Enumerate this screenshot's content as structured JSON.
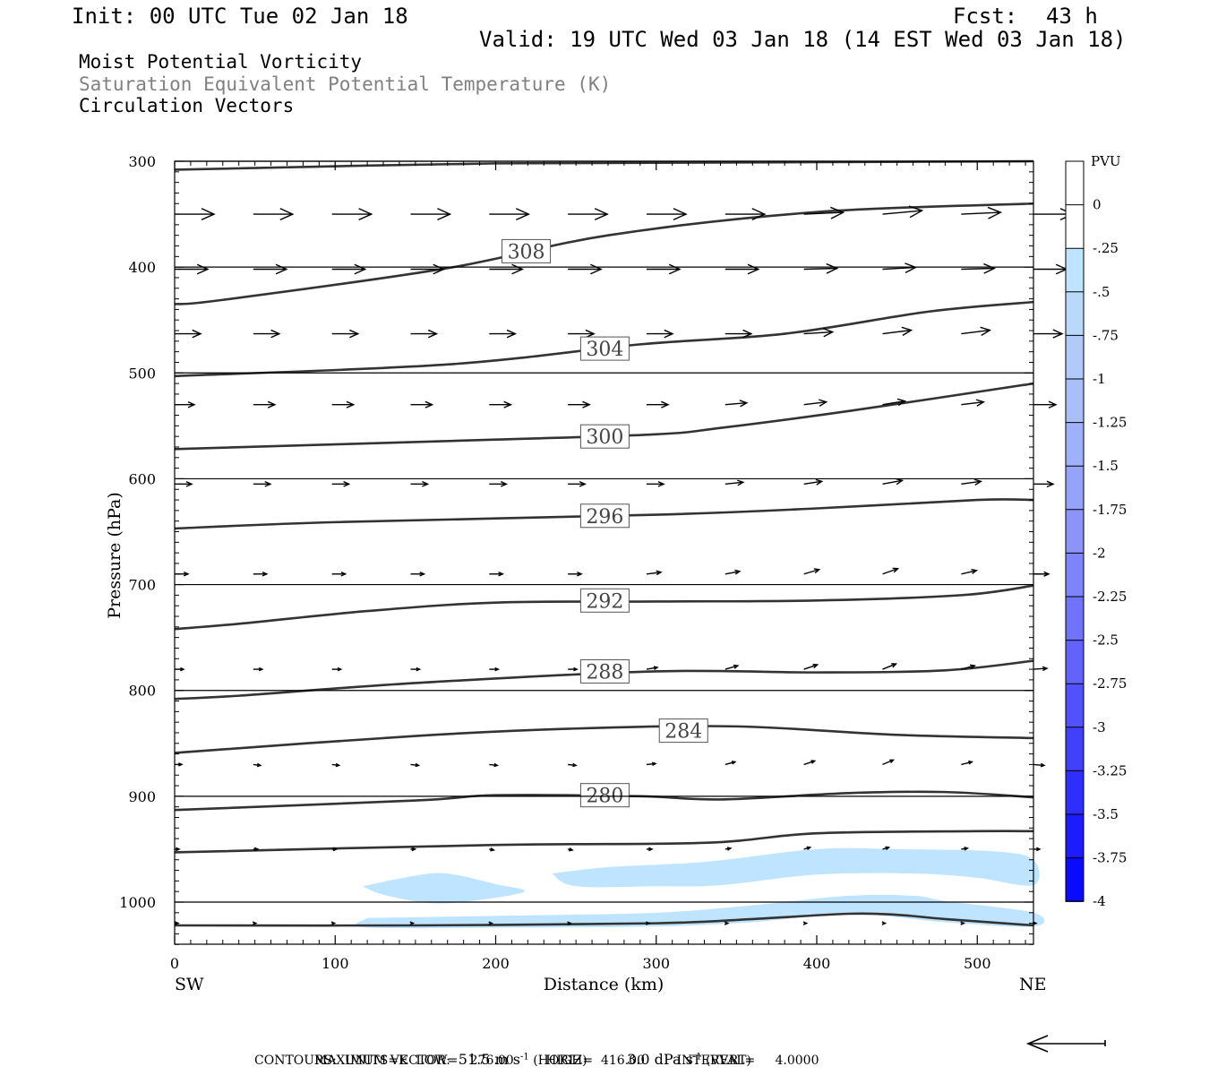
{
  "header": {
    "init": "Init: 00 UTC Tue 02 Jan 18",
    "fcst_label": "Fcst:",
    "fcst_value": "43 h",
    "valid": "Valid: 19 UTC Wed 03 Jan 18 (14 EST Wed 03 Jan 18)",
    "fields": [
      "Moist Potential Vorticity",
      "Saturation Equivalent Potential Temperature (K)",
      "Circulation Vectors"
    ],
    "field_colors": [
      "#000000",
      "#808080",
      "#000000"
    ]
  },
  "chart_data": {
    "type": "contour-cross-section",
    "xlabel": "Distance (km)",
    "ylabel": "Pressure (hPa)",
    "xlim": [
      0,
      535
    ],
    "ylim": [
      1040,
      300
    ],
    "x_ticks": [
      0,
      100,
      200,
      300,
      400,
      500
    ],
    "y_ticks": [
      300,
      400,
      500,
      600,
      700,
      800,
      900,
      1000
    ],
    "x_end_labels": {
      "left": "SW",
      "right": "NE"
    },
    "contour_labels": [
      {
        "value": "308",
        "x": 219,
        "p": 385
      },
      {
        "value": "304",
        "x": 268,
        "p": 477
      },
      {
        "value": "300",
        "x": 268,
        "p": 560
      },
      {
        "value": "296",
        "x": 268,
        "p": 635
      },
      {
        "value": "292",
        "x": 268,
        "p": 715
      },
      {
        "value": "288",
        "x": 268,
        "p": 782
      },
      {
        "value": "284",
        "x": 317,
        "p": 838
      },
      {
        "value": "280",
        "x": 268,
        "p": 899
      }
    ],
    "contours": [
      [
        [
          0,
          308
        ],
        [
          200,
          302
        ],
        [
          380,
          301
        ],
        [
          535,
          300
        ]
      ],
      [
        [
          0,
          435
        ],
        [
          30,
          431
        ],
        [
          170,
          401
        ],
        [
          270,
          370
        ],
        [
          400,
          348
        ],
        [
          535,
          340
        ]
      ],
      [
        [
          0,
          503
        ],
        [
          170,
          492
        ],
        [
          290,
          473
        ],
        [
          380,
          463
        ],
        [
          470,
          442
        ],
        [
          535,
          433
        ]
      ],
      [
        [
          0,
          572
        ],
        [
          200,
          563
        ],
        [
          300,
          558
        ],
        [
          340,
          552
        ],
        [
          420,
          536
        ],
        [
          535,
          510
        ]
      ],
      [
        [
          0,
          647
        ],
        [
          100,
          641
        ],
        [
          300,
          634
        ],
        [
          400,
          628
        ],
        [
          500,
          620
        ],
        [
          535,
          620
        ]
      ],
      [
        [
          0,
          742
        ],
        [
          40,
          737
        ],
        [
          120,
          725
        ],
        [
          200,
          717
        ],
        [
          300,
          716
        ],
        [
          400,
          715
        ],
        [
          490,
          710
        ],
        [
          535,
          701
        ]
      ],
      [
        [
          0,
          808
        ],
        [
          40,
          805
        ],
        [
          150,
          793
        ],
        [
          300,
          782
        ],
        [
          400,
          783
        ],
        [
          480,
          781
        ],
        [
          535,
          772
        ]
      ],
      [
        [
          0,
          859
        ],
        [
          150,
          843
        ],
        [
          250,
          836
        ],
        [
          350,
          834
        ],
        [
          450,
          842
        ],
        [
          535,
          845
        ]
      ],
      [
        [
          0,
          913
        ],
        [
          150,
          904
        ],
        [
          200,
          899
        ],
        [
          290,
          900
        ],
        [
          340,
          903
        ],
        [
          420,
          897
        ],
        [
          480,
          896
        ],
        [
          535,
          901
        ]
      ],
      [
        [
          0,
          953
        ],
        [
          200,
          946
        ],
        [
          330,
          944
        ],
        [
          400,
          935
        ],
        [
          500,
          933
        ],
        [
          535,
          933
        ]
      ],
      [
        [
          0,
          1022
        ],
        [
          150,
          1022
        ],
        [
          300,
          1020
        ],
        [
          360,
          1016
        ],
        [
          420,
          1011
        ],
        [
          450,
          1012
        ],
        [
          480,
          1016
        ],
        [
          535,
          1022
        ]
      ]
    ],
    "shaded_regions": [
      [
        [
          117,
          985
        ],
        [
          150,
          975
        ],
        [
          170,
          973
        ],
        [
          200,
          983
        ],
        [
          218,
          990
        ],
        [
          190,
          998
        ],
        [
          160,
          1001
        ],
        [
          130,
          993
        ]
      ],
      [
        [
          235,
          973
        ],
        [
          270,
          967
        ],
        [
          330,
          962
        ],
        [
          400,
          950
        ],
        [
          450,
          950
        ],
        [
          510,
          952
        ],
        [
          535,
          960
        ],
        [
          535,
          984
        ],
        [
          500,
          977
        ],
        [
          460,
          973
        ],
        [
          400,
          974
        ],
        [
          340,
          984
        ],
        [
          300,
          985
        ],
        [
          250,
          985
        ]
      ],
      [
        [
          120,
          1015
        ],
        [
          200,
          1013
        ],
        [
          300,
          1010
        ],
        [
          360,
          1003
        ],
        [
          420,
          994
        ],
        [
          460,
          994
        ],
        [
          480,
          999
        ],
        [
          535,
          1010
        ],
        [
          535,
          1023
        ],
        [
          480,
          1019
        ],
        [
          420,
          1011
        ],
        [
          360,
          1019
        ],
        [
          300,
          1023
        ],
        [
          220,
          1024
        ],
        [
          120,
          1024
        ]
      ]
    ],
    "vector_rows": [
      {
        "p": 350,
        "lengths": [
          44,
          44,
          44,
          44,
          44,
          44,
          44,
          44,
          44,
          44,
          44,
          44
        ],
        "rise": [
          0,
          0,
          0,
          0,
          0,
          0,
          0,
          0,
          2,
          4,
          2,
          0
        ]
      },
      {
        "p": 402,
        "lengths": [
          37,
          37,
          37,
          37,
          37,
          37,
          37,
          37,
          37,
          37,
          37,
          37
        ],
        "rise": [
          0,
          0,
          0,
          0,
          0,
          0,
          0,
          0,
          1,
          2,
          1,
          0
        ]
      },
      {
        "p": 463,
        "lengths": [
          29,
          29,
          29,
          29,
          29,
          29,
          29,
          29,
          32,
          32,
          32,
          32
        ],
        "rise": [
          0,
          0,
          0,
          0,
          0,
          0,
          0,
          0,
          2,
          4,
          4,
          0
        ]
      },
      {
        "p": 530,
        "lengths": [
          22,
          24,
          24,
          24,
          24,
          24,
          24,
          24,
          25,
          25,
          25,
          25
        ],
        "rise": [
          0,
          0,
          0,
          0,
          0,
          0,
          0,
          2,
          3,
          4,
          3,
          0
        ]
      },
      {
        "p": 605,
        "lengths": [
          19,
          19,
          19,
          19,
          19,
          19,
          19,
          20,
          20,
          22,
          22,
          22
        ],
        "rise": [
          0,
          0,
          0,
          0,
          0,
          0,
          0,
          2,
          3,
          4,
          3,
          0
        ]
      },
      {
        "p": 690,
        "lengths": [
          15,
          15,
          15,
          15,
          15,
          15,
          16,
          16,
          17,
          17,
          17,
          17
        ],
        "rise": [
          0,
          0,
          0,
          0,
          0,
          0,
          2,
          3,
          5,
          6,
          4,
          0
        ]
      },
      {
        "p": 780,
        "lengths": [
          10,
          10,
          10,
          10,
          10,
          10,
          12,
          14,
          15,
          15,
          15,
          15
        ],
        "rise": [
          0,
          0,
          0,
          0,
          0,
          0,
          2,
          4,
          5,
          6,
          4,
          1
        ]
      },
      {
        "p": 870,
        "lengths": [
          8,
          8,
          8,
          9,
          9,
          9,
          10,
          11,
          12,
          12,
          12,
          12
        ],
        "rise": [
          0,
          -1,
          -1,
          -1,
          -1,
          -1,
          1,
          3,
          4,
          5,
          3,
          -1
        ]
      },
      {
        "p": 950,
        "lengths": [
          5,
          5,
          5,
          5,
          5,
          5,
          6,
          6,
          7,
          7,
          7,
          7
        ],
        "rise": [
          0,
          0,
          0,
          0,
          -1,
          -1,
          0,
          1,
          2,
          2,
          1,
          0
        ]
      },
      {
        "p": 1020,
        "lengths": [
          4,
          3,
          3,
          3,
          3,
          3,
          3,
          3,
          3,
          3,
          3,
          3
        ],
        "rise": [
          0,
          0,
          0,
          0,
          0,
          0,
          0,
          0,
          0,
          0,
          0,
          0
        ]
      }
    ],
    "vector_x": [
      0,
      49,
      98,
      147,
      196,
      245,
      294,
      343,
      392,
      441,
      490,
      535
    ],
    "colorbar": {
      "title": "PVU",
      "labels": [
        "0",
        "-.25",
        "-.5",
        "-.75",
        "-1",
        "-1.25",
        "-1.5",
        "-1.75",
        "-2",
        "-2.25",
        "-2.5",
        "-2.75",
        "-3",
        "-3.25",
        "-3.5",
        "-3.75",
        "-4"
      ],
      "colors": [
        "#ffffff",
        "#ffffff",
        "#bfe4ff",
        "#b8d8fc",
        "#b0cbfa",
        "#a8bffa",
        "#9fb1fa",
        "#95a3fa",
        "#8a94fb",
        "#7e84fb",
        "#7173fc",
        "#6262fc",
        "#5151fd",
        "#4040fd",
        "#2e2efe",
        "#1c1cfe",
        "#0a0aff"
      ]
    },
    "shade_color": "#bfe4ff",
    "contour_color": "#333333"
  },
  "footer": {
    "max_vector_label": "MAXIMUM VECTOR:",
    "horiz_value": "51.5 m s",
    "horiz_sup": "-1",
    "horiz_tag": "(HORIZ)",
    "vert_value": "3.0 dPa s",
    "vert_sup": "-1",
    "vert_tag": "(VERT)",
    "contours": "CONTOURS:  UNITS=K  LOW=   276.00        HIGH=  416.00        INTERVAL=     4.0000"
  }
}
